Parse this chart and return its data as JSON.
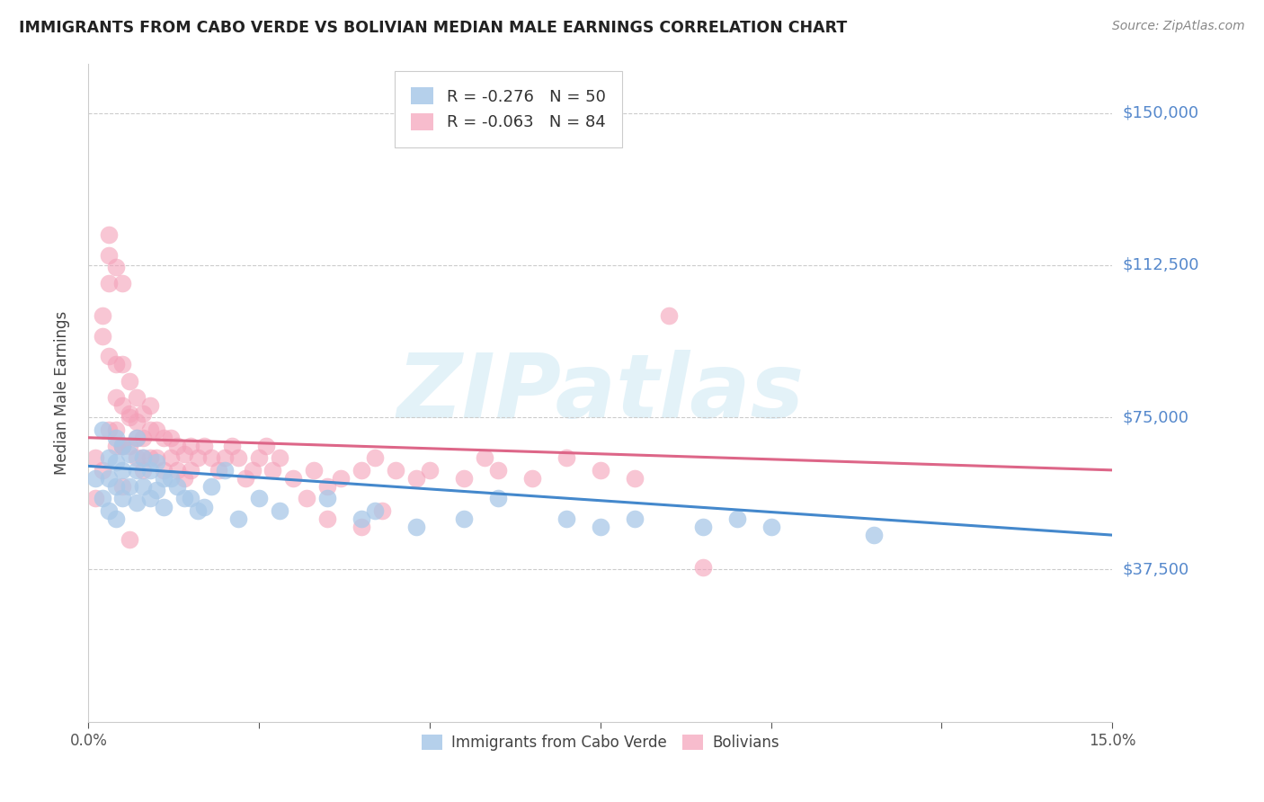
{
  "title": "IMMIGRANTS FROM CABO VERDE VS BOLIVIAN MEDIAN MALE EARNINGS CORRELATION CHART",
  "source": "Source: ZipAtlas.com",
  "ylabel": "Median Male Earnings",
  "ytick_labels": [
    "$150,000",
    "$112,500",
    "$75,000",
    "$37,500"
  ],
  "ytick_values": [
    150000,
    112500,
    75000,
    37500
  ],
  "ymin": 0,
  "ymax": 162000,
  "xmin": 0.0,
  "xmax": 0.15,
  "legend_r1_r": "R = ",
  "legend_r1_val": "-0.276",
  "legend_r1_n": "  N = ",
  "legend_r1_nval": "50",
  "legend_r2_r": "R = ",
  "legend_r2_val": "-0.063",
  "legend_r2_n": "  N = ",
  "legend_r2_nval": "84",
  "watermark": "ZIPatlas",
  "color_blue": "#a8c8e8",
  "color_pink": "#f4a0b8",
  "color_trend_blue": "#4488cc",
  "color_trend_pink": "#dd6688",
  "color_yticks": "#5588cc",
  "color_title": "#333333",
  "scatter_blue_x": [
    0.001,
    0.002,
    0.002,
    0.003,
    0.003,
    0.003,
    0.004,
    0.004,
    0.004,
    0.004,
    0.005,
    0.005,
    0.005,
    0.006,
    0.006,
    0.007,
    0.007,
    0.007,
    0.008,
    0.008,
    0.009,
    0.009,
    0.01,
    0.01,
    0.011,
    0.011,
    0.012,
    0.013,
    0.014,
    0.015,
    0.016,
    0.017,
    0.018,
    0.02,
    0.022,
    0.025,
    0.028,
    0.035,
    0.04,
    0.042,
    0.048,
    0.055,
    0.06,
    0.07,
    0.075,
    0.08,
    0.09,
    0.095,
    0.1,
    0.115
  ],
  "scatter_blue_y": [
    60000,
    72000,
    55000,
    65000,
    60000,
    52000,
    70000,
    64000,
    58000,
    50000,
    68000,
    62000,
    55000,
    66000,
    58000,
    70000,
    62000,
    54000,
    65000,
    58000,
    62000,
    55000,
    64000,
    57000,
    60000,
    53000,
    60000,
    58000,
    55000,
    55000,
    52000,
    53000,
    58000,
    62000,
    50000,
    55000,
    52000,
    55000,
    50000,
    52000,
    48000,
    50000,
    55000,
    50000,
    48000,
    50000,
    48000,
    50000,
    48000,
    46000
  ],
  "scatter_pink_x": [
    0.001,
    0.001,
    0.002,
    0.002,
    0.002,
    0.003,
    0.003,
    0.003,
    0.003,
    0.004,
    0.004,
    0.004,
    0.005,
    0.005,
    0.005,
    0.005,
    0.006,
    0.006,
    0.006,
    0.007,
    0.007,
    0.007,
    0.008,
    0.008,
    0.008,
    0.009,
    0.009,
    0.009,
    0.01,
    0.01,
    0.011,
    0.011,
    0.012,
    0.012,
    0.013,
    0.013,
    0.014,
    0.014,
    0.015,
    0.015,
    0.016,
    0.017,
    0.018,
    0.019,
    0.02,
    0.021,
    0.022,
    0.023,
    0.024,
    0.025,
    0.026,
    0.027,
    0.028,
    0.03,
    0.032,
    0.033,
    0.035,
    0.037,
    0.04,
    0.042,
    0.045,
    0.048,
    0.05,
    0.055,
    0.058,
    0.06,
    0.065,
    0.07,
    0.075,
    0.08,
    0.004,
    0.005,
    0.006,
    0.007,
    0.008,
    0.085,
    0.09,
    0.035,
    0.04,
    0.043,
    0.003,
    0.004,
    0.005,
    0.006
  ],
  "scatter_pink_y": [
    65000,
    55000,
    100000,
    95000,
    62000,
    115000,
    108000,
    90000,
    72000,
    88000,
    80000,
    68000,
    88000,
    78000,
    68000,
    58000,
    84000,
    76000,
    68000,
    80000,
    74000,
    65000,
    76000,
    70000,
    62000,
    72000,
    65000,
    78000,
    72000,
    65000,
    70000,
    62000,
    70000,
    65000,
    68000,
    62000,
    66000,
    60000,
    68000,
    62000,
    65000,
    68000,
    65000,
    62000,
    65000,
    68000,
    65000,
    60000,
    62000,
    65000,
    68000,
    62000,
    65000,
    60000,
    55000,
    62000,
    58000,
    60000,
    62000,
    65000,
    62000,
    60000,
    62000,
    60000,
    65000,
    62000,
    60000,
    65000,
    62000,
    60000,
    72000,
    68000,
    75000,
    70000,
    65000,
    100000,
    38000,
    50000,
    48000,
    52000,
    120000,
    112000,
    108000,
    45000
  ]
}
